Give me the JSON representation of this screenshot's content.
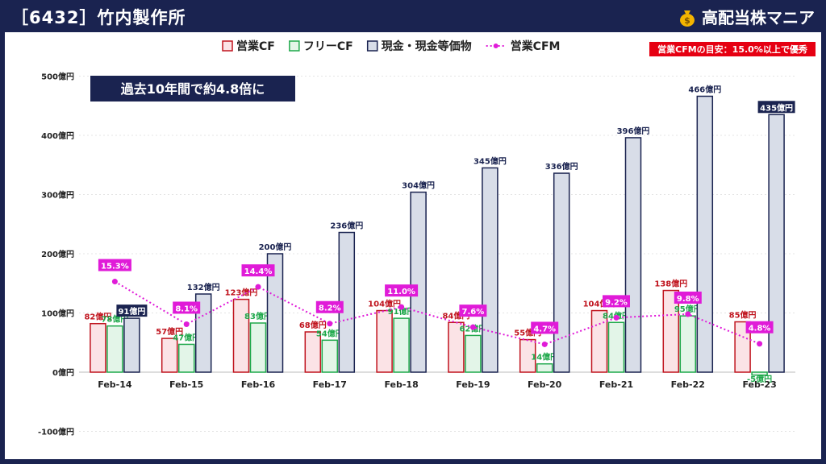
{
  "header": {
    "title": "［6432］竹内製作所",
    "brand": "高配当株マニア"
  },
  "chart_data": {
    "type": "bar",
    "categories": [
      "Feb-14",
      "Feb-15",
      "Feb-16",
      "Feb-17",
      "Feb-18",
      "Feb-19",
      "Feb-20",
      "Feb-21",
      "Feb-22",
      "Feb-23"
    ],
    "series": [
      {
        "name": "営業CF",
        "values": [
          82,
          57,
          123,
          68,
          104,
          84,
          55,
          104,
          138,
          85
        ],
        "labels": [
          "82億円",
          "57億円",
          "123億円",
          "68億円",
          "104億円",
          "84億円",
          "55億円",
          "104億円",
          "138億円",
          "85億円"
        ],
        "fill": "#fbe3e6",
        "stroke": "#c0141e",
        "label_color": "#c0141e"
      },
      {
        "name": "フリーCF",
        "values": [
          78,
          47,
          83,
          54,
          91,
          62,
          14,
          84,
          95,
          -5
        ],
        "labels": [
          "78億円",
          "47億円",
          "83億円",
          "54億円",
          "91億円",
          "62億円",
          "14億円",
          "84億円",
          "95億円",
          "-5億円"
        ],
        "fill": "#e3f5e8",
        "stroke": "#1fa84b",
        "label_color": "#1fa84b"
      },
      {
        "name": "現金・現金等価物",
        "values": [
          91,
          132,
          200,
          236,
          304,
          345,
          336,
          396,
          466,
          435
        ],
        "labels": [
          "91億円",
          "132億円",
          "200億円",
          "236億円",
          "304億円",
          "345億円",
          "336億円",
          "396億円",
          "466億円",
          "435億円"
        ],
        "fill": "#d8dde8",
        "stroke": "#1a2350",
        "label_color": "#1a2350"
      }
    ],
    "line_series": {
      "name": "営業CFM",
      "values": [
        15.3,
        8.1,
        14.4,
        8.2,
        11.0,
        7.6,
        4.7,
        9.2,
        9.8,
        4.8
      ],
      "labels": [
        "15.3%",
        "8.1%",
        "14.4%",
        "8.2%",
        "11.0%",
        "7.6%",
        "4.7%",
        "9.2%",
        "9.8%",
        "4.8%"
      ],
      "color": "#e01bd8"
    },
    "line_scale": {
      "min_pct": 0,
      "max_pct": 50
    },
    "ylim": [
      -100,
      500
    ],
    "yticks": [
      -100,
      0,
      100,
      200,
      300,
      400,
      500
    ],
    "ytick_labels": [
      "-100億円",
      "0億円",
      "100億円",
      "200億円",
      "300億円",
      "400億円",
      "500億円"
    ],
    "annotation": "過去10年間で約4.8倍に",
    "criteria_note": "営業CFMの目安：15.0%以上で優秀",
    "legend_position": "top-right",
    "highlighted_labels": [
      0,
      9
    ]
  }
}
